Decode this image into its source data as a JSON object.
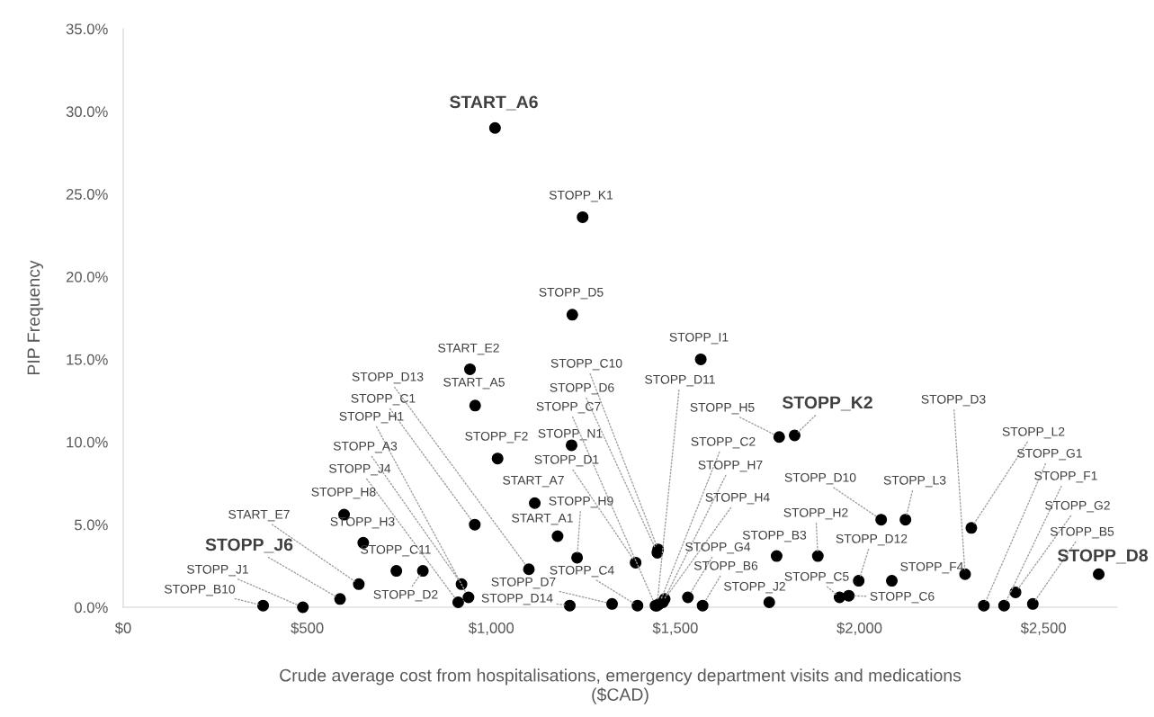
{
  "chart_data": {
    "type": "scatter",
    "xlabel": "Crude average cost from hospitalisations, emergency department visits and medications\n($CAD)",
    "ylabel": "PIP Frequency",
    "color": "#000000",
    "marker": "circle",
    "grid": false,
    "legend": false,
    "x": [
      1010,
      1248,
      1220,
      942,
      956,
      1017,
      1218,
      1118,
      1180,
      1233,
      1102,
      955,
      938,
      919,
      910,
      600,
      652,
      742,
      814,
      640,
      589,
      488,
      380,
      1328,
      1213,
      1397,
      1569,
      1453,
      1451,
      1446,
      1450,
      1392,
      1456,
      1466,
      1471,
      1534,
      1574,
      1755,
      1775,
      1782,
      1824,
      2059,
      1887,
      1998,
      1946,
      1971,
      2088,
      2125,
      2287,
      2304,
      2338,
      2393,
      2424,
      2471,
      2650
    ],
    "values": [
      29.0,
      23.6,
      17.7,
      14.4,
      12.2,
      9.0,
      9.8,
      6.3,
      4.3,
      3.0,
      2.3,
      5.0,
      0.6,
      1.4,
      0.3,
      5.6,
      3.9,
      2.2,
      2.2,
      1.4,
      0.5,
      0.0,
      0.1,
      0.2,
      0.1,
      0.1,
      15.0,
      3.5,
      3.3,
      0.1,
      0.1,
      2.7,
      0.2,
      0.3,
      0.5,
      0.6,
      0.1,
      0.3,
      3.1,
      10.3,
      10.4,
      5.3,
      3.1,
      1.6,
      0.6,
      0.7,
      1.6,
      5.3,
      2.0,
      4.8,
      0.1,
      0.1,
      0.9,
      0.2,
      2.0
    ],
    "value_labels": [
      "START_A6",
      "STOPP_K1",
      "STOPP_D5",
      "START_E2",
      "START_A5",
      "STOPP_F2",
      "STOPP_N1",
      "START_A7",
      "START_A1",
      "STOPP_H9",
      "STOPP_D13",
      "STOPP_C1",
      "STOPP_H1",
      "STOPP_A3",
      "STOPP_J4",
      "STOPP_H8",
      "STOPP_H3",
      "STOPP_C11",
      "STOPP_D2",
      "START_E7",
      "STOPP_J6",
      "STOPP_J1",
      "STOPP_B10",
      "STOPP_D7",
      "STOPP_D14",
      "STOPP_C4",
      "STOPP_I1",
      "STOPP_C10",
      "STOPP_D6",
      "STOPP_C7",
      "STOPP_D11",
      "STOPP_D1",
      "STOPP_C2",
      "STOPP_H7",
      "STOPP_H4",
      "STOPP_G4",
      "STOPP_B6",
      "STOPP_J2",
      "STOPP_B3",
      "STOPP_H5",
      "STOPP_K2",
      "STOPP_D10",
      "STOPP_H2",
      "STOPP_D12",
      "STOPP_C5",
      "STOPP_C6",
      "STOPP_F4",
      "STOPP_L3",
      "STOPP_D3",
      "STOPP_L2",
      "STOPP_G1",
      "STOPP_F1",
      "STOPP_G2",
      "STOPP_B5",
      "STOPP_D8"
    ],
    "xlim": [
      0,
      2700
    ],
    "xticks": [
      {
        "value": 0,
        "label": "$0"
      },
      {
        "value": 500,
        "label": "$500"
      },
      {
        "value": 1000,
        "label": "$1,000"
      },
      {
        "value": 1500,
        "label": "$1,500"
      },
      {
        "value": 2000,
        "label": "$2,000"
      },
      {
        "value": 2500,
        "label": "$2,500"
      }
    ],
    "ylim": [
      0,
      35
    ],
    "yticks": [
      {
        "value": 0,
        "label": "0.0%"
      },
      {
        "value": 5,
        "label": "5.0%"
      },
      {
        "value": 10,
        "label": "10.0%"
      },
      {
        "value": 15,
        "label": "15.0%"
      },
      {
        "value": 20,
        "label": "20.0%"
      },
      {
        "value": 25,
        "label": "25.0%"
      },
      {
        "value": 30,
        "label": "30.0%"
      },
      {
        "value": 35,
        "label": "35.0%"
      }
    ]
  }
}
